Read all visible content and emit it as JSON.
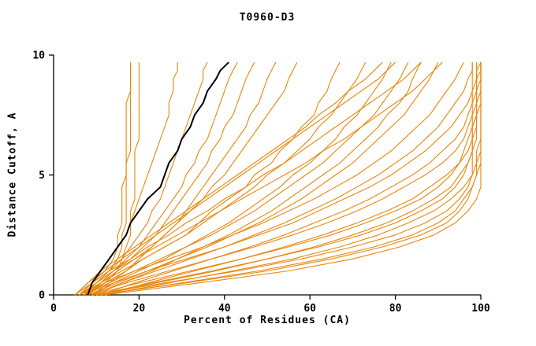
{
  "chart_data": {
    "type": "line",
    "title": "T0960-D3",
    "xlabel": "Percent of Residues (CA)",
    "ylabel": "Distance Cutoff, A",
    "xlim": [
      0,
      100
    ],
    "ylim": [
      0,
      10
    ],
    "xticks": [
      0,
      20,
      40,
      60,
      80,
      100
    ],
    "yticks": [
      0,
      5,
      10
    ],
    "grid": false,
    "legend": "none",
    "colors": {
      "model_line": "#e8860d",
      "highlight_line": "#000000",
      "axis": "#000000"
    },
    "x_is_percent": true,
    "cutoffs": [
      0,
      0.5,
      1,
      1.5,
      2,
      2.5,
      3,
      3.5,
      4,
      4.5,
      5,
      5.5,
      6,
      6.5,
      7,
      7.5,
      8,
      8.5,
      9,
      9.35,
      9.7
    ],
    "series": [
      {
        "highlight": false,
        "values": [
          6,
          10,
          13,
          15,
          16,
          16,
          17,
          17,
          17,
          17,
          17,
          17,
          18,
          18,
          18,
          18,
          18,
          18,
          18,
          18,
          18
        ]
      },
      {
        "highlight": false,
        "values": [
          7,
          12,
          15,
          16,
          17,
          18,
          18,
          18,
          19,
          19,
          19,
          19,
          19,
          20,
          20,
          20,
          20,
          20,
          20,
          20,
          20
        ]
      },
      {
        "highlight": false,
        "values": [
          5,
          9,
          12,
          14,
          15,
          15,
          16,
          16,
          16,
          16,
          17,
          17,
          17,
          17,
          17,
          17,
          17,
          18,
          18,
          18,
          18
        ]
      },
      {
        "highlight": false,
        "values": [
          6,
          9,
          11,
          13,
          15,
          17,
          18,
          19,
          20,
          21,
          22,
          23,
          24,
          25,
          26,
          27,
          27,
          28,
          28,
          29,
          29
        ]
      },
      {
        "highlight": false,
        "values": [
          7,
          10,
          13,
          16,
          18,
          20,
          22,
          23,
          25,
          26,
          27,
          28,
          29,
          30,
          31,
          32,
          33,
          34,
          35,
          35,
          36
        ]
      },
      {
        "highlight": false,
        "values": [
          8,
          11,
          14,
          17,
          20,
          22,
          24,
          26,
          28,
          30,
          31,
          33,
          34,
          36,
          37,
          38,
          39,
          40,
          41,
          42,
          43
        ]
      },
      {
        "highlight": false,
        "values": [
          6,
          10,
          14,
          18,
          21,
          24,
          26,
          28,
          30,
          32,
          34,
          36,
          37,
          39,
          40,
          42,
          43,
          44,
          45,
          46,
          47
        ]
      },
      {
        "highlight": false,
        "values": [
          9,
          13,
          17,
          20,
          23,
          26,
          29,
          31,
          33,
          35,
          37,
          39,
          41,
          43,
          45,
          46,
          48,
          49,
          50,
          51,
          52
        ]
      },
      {
        "highlight": false,
        "values": [
          7,
          11,
          15,
          19,
          23,
          26,
          29,
          32,
          35,
          37,
          40,
          42,
          44,
          46,
          48,
          50,
          52,
          54,
          55,
          56,
          57
        ]
      },
      {
        "highlight": false,
        "values": [
          8,
          12,
          17,
          21,
          26,
          31,
          34,
          37,
          41,
          45,
          47,
          51,
          53,
          56,
          58,
          61,
          62,
          64,
          65,
          66,
          67
        ]
      },
      {
        "highlight": false,
        "values": [
          6,
          11,
          16,
          21,
          26,
          31,
          35,
          39,
          43,
          47,
          50,
          54,
          57,
          60,
          62,
          65,
          67,
          69,
          71,
          72,
          73
        ]
      },
      {
        "highlight": false,
        "values": [
          9,
          14,
          20,
          26,
          31,
          36,
          41,
          45,
          49,
          53,
          56,
          60,
          63,
          66,
          68,
          71,
          73,
          75,
          77,
          78,
          79
        ]
      },
      {
        "highlight": false,
        "values": [
          7,
          13,
          19,
          25,
          31,
          37,
          42,
          47,
          51,
          55,
          59,
          63,
          66,
          69,
          72,
          75,
          77,
          79,
          81,
          82,
          83
        ]
      },
      {
        "highlight": false,
        "values": [
          10,
          16,
          23,
          29,
          35,
          41,
          46,
          51,
          55,
          59,
          63,
          67,
          70,
          73,
          76,
          78,
          81,
          83,
          84,
          85,
          86
        ]
      },
      {
        "highlight": false,
        "values": [
          8,
          15,
          22,
          29,
          36,
          42,
          48,
          53,
          58,
          62,
          66,
          70,
          73,
          76,
          79,
          82,
          84,
          86,
          88,
          89,
          90
        ]
      },
      {
        "highlight": false,
        "values": [
          6,
          12,
          19,
          27,
          35,
          42,
          49,
          55,
          61,
          66,
          71,
          75,
          79,
          82,
          85,
          88,
          90,
          92,
          94,
          95,
          96
        ]
      },
      {
        "highlight": false,
        "values": [
          9,
          16,
          24,
          32,
          40,
          47,
          54,
          60,
          66,
          71,
          76,
          80,
          84,
          87,
          90,
          92,
          94,
          96,
          97,
          98,
          98
        ]
      },
      {
        "highlight": false,
        "values": [
          7,
          14,
          22,
          31,
          40,
          48,
          56,
          62,
          68,
          74,
          79,
          83,
          87,
          90,
          93,
          95,
          97,
          98,
          99,
          99,
          100
        ]
      },
      {
        "highlight": false,
        "values": [
          11,
          19,
          28,
          37,
          46,
          54,
          61,
          68,
          74,
          79,
          84,
          88,
          91,
          94,
          96,
          97,
          98,
          99,
          99,
          100,
          100
        ]
      },
      {
        "highlight": false,
        "values": [
          8,
          17,
          27,
          37,
          47,
          56,
          64,
          71,
          77,
          82,
          87,
          91,
          94,
          96,
          97,
          98,
          99,
          99,
          100,
          100,
          100
        ]
      },
      {
        "highlight": false,
        "values": [
          12,
          22,
          33,
          44,
          54,
          63,
          71,
          78,
          84,
          88,
          92,
          95,
          96,
          97,
          98,
          99,
          99,
          100,
          100,
          100,
          100
        ]
      },
      {
        "highlight": false,
        "values": [
          9,
          20,
          32,
          44,
          55,
          65,
          73,
          80,
          86,
          90,
          93,
          95,
          97,
          98,
          98,
          99,
          99,
          99,
          99,
          99,
          99
        ]
      },
      {
        "highlight": false,
        "values": [
          11,
          24,
          38,
          50,
          61,
          70,
          78,
          84,
          89,
          93,
          95,
          97,
          98,
          99,
          99,
          99,
          100,
          100,
          100,
          100,
          100
        ]
      },
      {
        "highlight": false,
        "values": [
          10,
          23,
          37,
          50,
          62,
          72,
          80,
          86,
          91,
          94,
          96,
          97,
          98,
          98,
          99,
          99,
          99,
          99,
          99,
          99,
          99
        ]
      },
      {
        "highlight": false,
        "values": [
          12,
          27,
          42,
          56,
          67,
          76,
          83,
          89,
          93,
          96,
          98,
          99,
          100,
          100,
          100,
          100,
          100,
          100,
          100,
          100,
          100
        ]
      },
      {
        "highlight": false,
        "values": [
          9,
          26,
          43,
          58,
          70,
          80,
          87,
          92,
          95,
          97,
          98,
          98,
          98,
          98,
          98,
          98,
          98,
          98,
          98,
          98,
          98
        ]
      },
      {
        "highlight": false,
        "values": [
          11,
          30,
          48,
          63,
          75,
          84,
          90,
          94,
          96,
          98,
          99,
          99,
          99,
          100,
          100,
          100,
          100,
          100,
          100,
          100,
          100
        ]
      },
      {
        "highlight": false,
        "values": [
          10,
          31,
          50,
          65,
          77,
          86,
          92,
          95,
          97,
          98,
          99,
          100,
          100,
          100,
          100,
          100,
          100,
          100,
          100,
          100,
          100
        ]
      },
      {
        "highlight": false,
        "values": [
          12,
          34,
          55,
          70,
          81,
          89,
          94,
          97,
          99,
          100,
          100,
          100,
          100,
          100,
          100,
          100,
          100,
          100,
          100,
          100,
          100
        ]
      },
      {
        "highlight": false,
        "values": [
          5,
          8,
          12,
          16,
          20,
          24,
          28,
          32,
          36,
          40,
          44,
          48,
          52,
          56,
          60,
          64,
          68,
          72,
          76,
          78,
          80
        ]
      },
      {
        "highlight": false,
        "values": [
          6,
          9,
          13,
          18,
          22,
          27,
          31,
          36,
          40,
          45,
          49,
          54,
          58,
          62,
          66,
          70,
          74,
          78,
          82,
          84,
          86
        ]
      },
      {
        "highlight": false,
        "values": [
          7,
          10,
          14,
          19,
          24,
          29,
          34,
          39,
          44,
          49,
          54,
          59,
          63,
          68,
          72,
          76,
          80,
          84,
          87,
          89,
          91
        ]
      },
      {
        "highlight": false,
        "values": [
          5,
          8,
          11,
          15,
          19,
          23,
          27,
          31,
          35,
          39,
          43,
          47,
          51,
          55,
          59,
          62,
          66,
          69,
          73,
          75,
          77
        ]
      },
      {
        "highlight": true,
        "values": [
          8,
          9,
          11,
          13,
          15,
          17,
          18,
          20,
          22,
          25,
          26,
          27,
          29,
          30,
          32,
          33,
          35,
          36,
          38,
          39,
          41
        ]
      }
    ]
  }
}
